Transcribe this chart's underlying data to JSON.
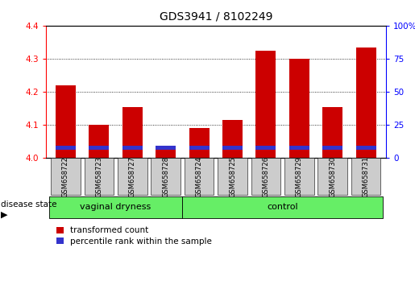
{
  "title": "GDS3941 / 8102249",
  "samples": [
    "GSM658722",
    "GSM658723",
    "GSM658727",
    "GSM658728",
    "GSM658724",
    "GSM658725",
    "GSM658726",
    "GSM658729",
    "GSM658730",
    "GSM658731"
  ],
  "red_values": [
    4.22,
    4.1,
    4.155,
    4.025,
    4.09,
    4.115,
    4.325,
    4.3,
    4.155,
    4.335
  ],
  "blue_bottom": [
    4.025,
    4.025,
    4.025,
    4.025,
    4.025,
    4.025,
    4.025,
    4.025,
    4.025,
    4.025
  ],
  "blue_heights": [
    0.012,
    0.012,
    0.012,
    0.012,
    0.012,
    0.012,
    0.012,
    0.012,
    0.012,
    0.012
  ],
  "ymin": 4.0,
  "ymax": 4.4,
  "yticks_left": [
    4.0,
    4.1,
    4.2,
    4.3,
    4.4
  ],
  "yticks_right": [
    0,
    25,
    50,
    75,
    100
  ],
  "bar_width": 0.6,
  "red_color": "#cc0000",
  "blue_color": "#3333cc",
  "group1_label": "vaginal dryness",
  "group2_label": "control",
  "group1_count": 4,
  "group2_count": 6,
  "group_bar_color": "#66ee66",
  "xticklabel_bg": "#cccccc",
  "legend_red": "transformed count",
  "legend_blue": "percentile rank within the sample",
  "disease_state_label": "disease state",
  "title_fontsize": 10,
  "tick_fontsize": 7.5,
  "label_fontsize": 8
}
